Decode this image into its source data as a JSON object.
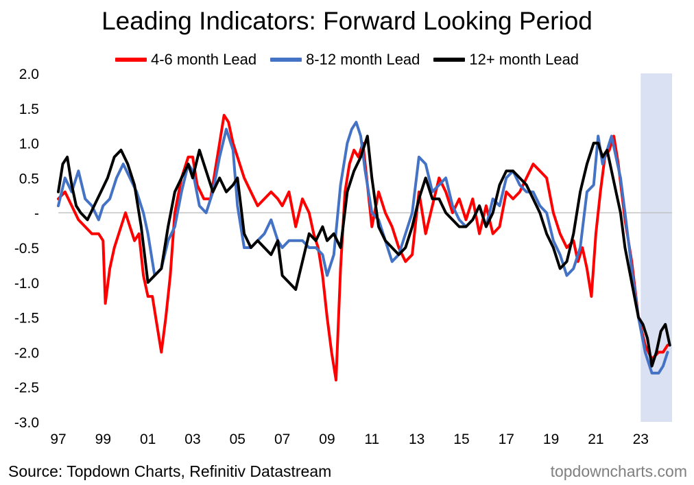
{
  "chart_data": {
    "type": "line",
    "title": "Leading Indicators: Forward Looking Period",
    "xlabel": "",
    "ylabel": "",
    "xlim": [
      1997,
      2024.4
    ],
    "ylim": [
      -3.0,
      2.0
    ],
    "y_ticks": [
      2.0,
      1.5,
      1.0,
      0.5,
      0,
      -0.5,
      -1.0,
      -1.5,
      -2.0,
      -2.5,
      -3.0
    ],
    "y_tick_labels": [
      "2.0",
      "1.5",
      "1.0",
      "0.5",
      "-",
      "-0.5",
      "-1.0",
      "-1.5",
      "-2.0",
      "-2.5",
      "-3.0"
    ],
    "x_ticks": [
      1997,
      1999,
      2001,
      2003,
      2005,
      2007,
      2009,
      2011,
      2013,
      2015,
      2017,
      2019,
      2021,
      2023
    ],
    "x_tick_labels": [
      "97",
      "99",
      "01",
      "03",
      "05",
      "07",
      "09",
      "11",
      "13",
      "15",
      "17",
      "19",
      "21",
      "23"
    ],
    "zero_line": true,
    "shaded_region": {
      "from": 2023.0,
      "to": 2024.4,
      "color": "#d9e1f2"
    },
    "legend_position": "top",
    "series": [
      {
        "name": "4-6 month Lead",
        "color": "#ff0000",
        "x": [
          1997.0,
          1997.3,
          1997.6,
          1997.9,
          1998.2,
          1998.5,
          1998.8,
          1999.0,
          1999.1,
          1999.3,
          1999.5,
          1999.7,
          2000.0,
          2000.2,
          2000.4,
          2000.6,
          2000.8,
          2001.0,
          2001.2,
          2001.4,
          2001.6,
          2001.8,
          2002.0,
          2002.2,
          2002.5,
          2002.8,
          2003.0,
          2003.2,
          2003.5,
          2003.8,
          2004.0,
          2004.2,
          2004.4,
          2004.6,
          2004.8,
          2005.0,
          2005.3,
          2005.6,
          2005.9,
          2006.2,
          2006.5,
          2006.8,
          2007.0,
          2007.3,
          2007.6,
          2007.9,
          2008.2,
          2008.4,
          2008.6,
          2008.8,
          2009.0,
          2009.2,
          2009.4,
          2009.6,
          2009.8,
          2010.0,
          2010.2,
          2010.4,
          2010.6,
          2010.8,
          2011.0,
          2011.3,
          2011.6,
          2011.9,
          2012.2,
          2012.5,
          2012.8,
          2013.1,
          2013.4,
          2013.7,
          2014.0,
          2014.3,
          2014.6,
          2014.9,
          2015.2,
          2015.5,
          2015.8,
          2016.1,
          2016.4,
          2016.7,
          2017.0,
          2017.3,
          2017.6,
          2017.9,
          2018.2,
          2018.5,
          2018.8,
          2019.1,
          2019.4,
          2019.7,
          2020.0,
          2020.2,
          2020.4,
          2020.6,
          2020.8,
          2021.0,
          2021.2,
          2021.4,
          2021.6,
          2021.8,
          2022.0,
          2022.3,
          2022.6,
          2022.9,
          2023.2,
          2023.5,
          2023.8,
          2024.0,
          2024.2
        ],
        "y": [
          0.2,
          0.3,
          0.1,
          -0.1,
          -0.2,
          -0.3,
          -0.3,
          -0.4,
          -1.3,
          -0.8,
          -0.5,
          -0.3,
          0.0,
          -0.2,
          -0.4,
          -0.3,
          -0.9,
          -1.2,
          -1.2,
          -1.6,
          -2.0,
          -1.5,
          -0.9,
          0.0,
          0.5,
          0.8,
          0.8,
          0.4,
          0.2,
          0.2,
          0.6,
          1.0,
          1.4,
          1.3,
          1.0,
          0.8,
          0.5,
          0.3,
          0.1,
          0.2,
          0.3,
          0.2,
          0.1,
          0.3,
          -0.2,
          0.2,
          0.0,
          -0.3,
          -0.5,
          -0.9,
          -1.5,
          -2.0,
          -2.4,
          -0.8,
          0.3,
          0.7,
          0.9,
          0.8,
          1.0,
          0.4,
          -0.2,
          0.3,
          0.0,
          -0.2,
          -0.5,
          -0.7,
          -0.6,
          0.3,
          -0.3,
          0.1,
          0.5,
          0.3,
          0.0,
          0.2,
          -0.1,
          0.2,
          -0.3,
          0.1,
          -0.3,
          -0.2,
          0.3,
          0.2,
          0.3,
          0.5,
          0.7,
          0.6,
          0.5,
          0.0,
          -0.3,
          -0.5,
          -0.4,
          -0.7,
          -0.5,
          -0.8,
          -1.2,
          -0.3,
          0.3,
          0.8,
          0.9,
          1.1,
          0.7,
          -0.1,
          -0.7,
          -1.5,
          -1.9,
          -2.1,
          -2.0,
          -2.0,
          -1.9
        ]
      },
      {
        "name": "8-12 month Lead",
        "color": "#4472c4",
        "x": [
          1997.0,
          1997.3,
          1997.6,
          1997.9,
          1998.2,
          1998.5,
          1998.8,
          1999.0,
          1999.3,
          1999.6,
          1999.9,
          2000.2,
          2000.5,
          2000.8,
          2001.0,
          2001.3,
          2001.6,
          2001.9,
          2002.2,
          2002.5,
          2002.8,
          2003.0,
          2003.3,
          2003.6,
          2003.9,
          2004.2,
          2004.5,
          2004.8,
          2005.0,
          2005.3,
          2005.6,
          2005.9,
          2006.2,
          2006.5,
          2006.8,
          2007.0,
          2007.3,
          2007.6,
          2007.9,
          2008.2,
          2008.5,
          2008.8,
          2009.0,
          2009.3,
          2009.6,
          2009.9,
          2010.1,
          2010.3,
          2010.5,
          2010.7,
          2011.0,
          2011.3,
          2011.6,
          2011.9,
          2012.2,
          2012.5,
          2012.8,
          2013.1,
          2013.4,
          2013.7,
          2014.0,
          2014.3,
          2014.6,
          2014.9,
          2015.2,
          2015.5,
          2015.8,
          2016.1,
          2016.4,
          2016.7,
          2017.0,
          2017.3,
          2017.6,
          2017.9,
          2018.2,
          2018.5,
          2018.8,
          2019.1,
          2019.4,
          2019.7,
          2020.0,
          2020.3,
          2020.6,
          2020.9,
          2021.1,
          2021.3,
          2021.5,
          2021.7,
          2021.9,
          2022.1,
          2022.3,
          2022.6,
          2022.9,
          2023.2,
          2023.5,
          2023.8,
          2024.0,
          2024.2
        ],
        "y": [
          0.1,
          0.5,
          0.3,
          0.6,
          0.2,
          0.1,
          -0.1,
          0.1,
          0.2,
          0.5,
          0.7,
          0.5,
          0.3,
          0.0,
          -0.3,
          -0.9,
          -0.8,
          -0.4,
          -0.2,
          0.3,
          0.7,
          0.6,
          0.1,
          0.0,
          0.3,
          0.8,
          1.2,
          0.9,
          0.1,
          -0.5,
          -0.5,
          -0.4,
          -0.3,
          -0.1,
          -0.4,
          -0.5,
          -0.4,
          -0.4,
          -0.4,
          -0.5,
          -0.5,
          -0.6,
          -0.9,
          -0.6,
          0.4,
          1.0,
          1.2,
          1.3,
          1.1,
          0.6,
          0.0,
          -0.1,
          -0.4,
          -0.7,
          -0.6,
          -0.3,
          0.0,
          0.8,
          0.7,
          0.3,
          0.4,
          0.5,
          0.1,
          -0.1,
          -0.2,
          -0.1,
          0.1,
          -0.2,
          0.2,
          0.1,
          0.5,
          0.6,
          0.4,
          0.3,
          0.3,
          0.1,
          0.0,
          -0.4,
          -0.6,
          -0.9,
          -0.8,
          -0.5,
          0.3,
          0.4,
          1.1,
          0.7,
          0.9,
          1.1,
          0.8,
          0.5,
          0.0,
          -0.8,
          -1.5,
          -2.0,
          -2.3,
          -2.3,
          -2.2,
          -2.0
        ]
      },
      {
        "name": "12+ month Lead",
        "color": "#000000",
        "x": [
          1997.0,
          1997.2,
          1997.4,
          1997.6,
          1997.8,
          1998.0,
          1998.3,
          1998.6,
          1998.9,
          1999.2,
          1999.5,
          1999.8,
          2000.1,
          2000.4,
          2000.7,
          2001.0,
          2001.3,
          2001.6,
          2001.9,
          2002.2,
          2002.5,
          2002.8,
          2003.0,
          2003.3,
          2003.6,
          2003.9,
          2004.2,
          2004.5,
          2004.8,
          2005.0,
          2005.3,
          2005.6,
          2005.9,
          2006.2,
          2006.5,
          2006.8,
          2007.0,
          2007.3,
          2007.6,
          2007.9,
          2008.2,
          2008.5,
          2008.8,
          2009.0,
          2009.3,
          2009.6,
          2009.9,
          2010.2,
          2010.5,
          2010.8,
          2011.0,
          2011.3,
          2011.6,
          2011.9,
          2012.2,
          2012.5,
          2012.8,
          2013.1,
          2013.4,
          2013.7,
          2014.0,
          2014.3,
          2014.6,
          2014.9,
          2015.2,
          2015.5,
          2015.8,
          2016.1,
          2016.4,
          2016.7,
          2017.0,
          2017.3,
          2017.6,
          2017.9,
          2018.2,
          2018.5,
          2018.8,
          2019.1,
          2019.4,
          2019.7,
          2020.0,
          2020.3,
          2020.6,
          2020.9,
          2021.1,
          2021.3,
          2021.5,
          2021.7,
          2021.9,
          2022.1,
          2022.3,
          2022.6,
          2022.9,
          2023.1,
          2023.3,
          2023.5,
          2023.7,
          2023.9,
          2024.1,
          2024.3
        ],
        "y": [
          0.3,
          0.7,
          0.8,
          0.4,
          0.1,
          0.0,
          -0.1,
          0.1,
          0.3,
          0.5,
          0.8,
          0.9,
          0.7,
          0.4,
          -0.2,
          -1.0,
          -0.9,
          -0.8,
          -0.2,
          0.3,
          0.5,
          0.7,
          0.5,
          0.9,
          0.6,
          0.3,
          0.5,
          0.3,
          0.4,
          0.5,
          -0.3,
          -0.5,
          -0.4,
          -0.5,
          -0.6,
          -0.4,
          -0.9,
          -1.0,
          -1.1,
          -0.7,
          -0.3,
          -0.4,
          -0.2,
          -0.4,
          -0.3,
          -0.5,
          0.3,
          0.6,
          0.8,
          1.1,
          0.5,
          -0.2,
          -0.4,
          -0.5,
          -0.6,
          -0.5,
          -0.2,
          0.2,
          0.5,
          0.2,
          0.2,
          0.0,
          -0.1,
          -0.2,
          -0.2,
          -0.1,
          0.1,
          -0.2,
          0.0,
          0.4,
          0.6,
          0.6,
          0.5,
          0.4,
          0.2,
          0.0,
          -0.3,
          -0.5,
          -0.8,
          -0.7,
          -0.3,
          0.3,
          0.7,
          1.0,
          1.0,
          0.8,
          0.9,
          0.6,
          0.3,
          0.0,
          -0.5,
          -1.0,
          -1.5,
          -1.6,
          -1.8,
          -2.2,
          -2.0,
          -1.7,
          -1.6,
          -1.9
        ]
      }
    ]
  },
  "legend": {
    "items": [
      {
        "label": "4-6 month Lead",
        "color": "#ff0000"
      },
      {
        "label": "8-12 month Lead",
        "color": "#4472c4"
      },
      {
        "label": "12+ month Lead",
        "color": "#000000"
      }
    ]
  },
  "footer": {
    "source": "Source: Topdown Charts, Refinitiv Datastream",
    "brand": "topdowncharts.com"
  }
}
